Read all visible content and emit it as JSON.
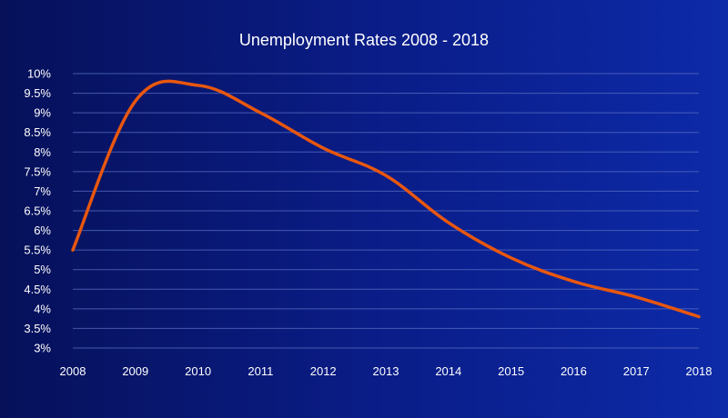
{
  "chart_data": {
    "type": "line",
    "title": "Unemployment Rates 2008 - 2018",
    "xlabel": "",
    "ylabel": "",
    "categories": [
      "2008",
      "2009",
      "2010",
      "2011",
      "2012",
      "2013",
      "2014",
      "2015",
      "2016",
      "2017",
      "2018"
    ],
    "y_tick_labels": [
      "3%",
      "3.5%",
      "4%",
      "4.5%",
      "5%",
      "5.5%",
      "6%",
      "6.5%",
      "7%",
      "7.5%",
      "8%",
      "8.5%",
      "9%",
      "9.5%",
      "10%"
    ],
    "ylim": [
      3,
      10
    ],
    "grid": true,
    "legend": "none",
    "series": [
      {
        "color": "#e8570f",
        "values": [
          5.5,
          9.3,
          9.7,
          9.0,
          8.1,
          7.4,
          6.2,
          5.3,
          4.7,
          4.3,
          3.8
        ]
      }
    ]
  },
  "colors": {
    "background_left": "#06115a",
    "background_right": "#0d2aa8",
    "text": "#ffffff",
    "grid": "#5a6fc4"
  }
}
